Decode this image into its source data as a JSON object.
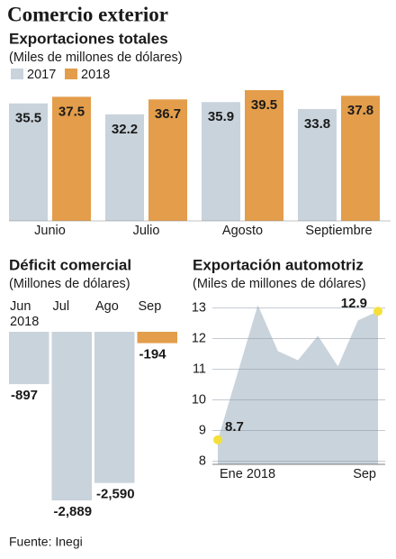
{
  "title": "Comercio exterior",
  "source": "Fuente: Inegi",
  "chart_data": [
    {
      "type": "bar",
      "title": "Exportaciones totales",
      "subtitle": "(Miles de millones de dólares)",
      "categories": [
        "Junio",
        "Julio",
        "Agosto",
        "Septiembre"
      ],
      "series": [
        {
          "name": "2017",
          "color": "#c9d3dc",
          "values": [
            35.5,
            32.2,
            35.9,
            33.8
          ]
        },
        {
          "name": "2018",
          "color": "#e39d4b",
          "values": [
            37.5,
            36.7,
            39.5,
            37.8
          ]
        }
      ],
      "legend": "top-left"
    },
    {
      "type": "bar",
      "title": "Déficit comercial",
      "subtitle": "(Millones de dólares)",
      "categories": [
        "Jun 2018",
        "Jul",
        "Ago",
        "Sep"
      ],
      "values": [
        -897,
        -2889,
        -2590,
        -194
      ],
      "value_labels": [
        "-897",
        "-2,889",
        "-2,590",
        "-194"
      ],
      "colors": [
        "#c9d3dc",
        "#c9d3dc",
        "#c9d3dc",
        "#e39d4b"
      ]
    },
    {
      "type": "area",
      "title": "Exportación automotriz",
      "subtitle": "(Miles de millones de dólares)",
      "categories": [
        "Ene 2018",
        null,
        null,
        null,
        null,
        null,
        null,
        null,
        "Sep"
      ],
      "values": [
        8.7,
        10.9,
        13.1,
        11.6,
        11.3,
        12.1,
        11.1,
        12.6,
        12.9
      ],
      "value_labels": [
        "8.7",
        null,
        null,
        null,
        null,
        null,
        null,
        null,
        "12.9"
      ],
      "color": "#c9d3dc",
      "marker_color": "#f3e03a",
      "ylim": [
        7.9,
        13.2
      ],
      "yticks": [
        8,
        9,
        10,
        11,
        12,
        13
      ],
      "grid": true
    }
  ]
}
